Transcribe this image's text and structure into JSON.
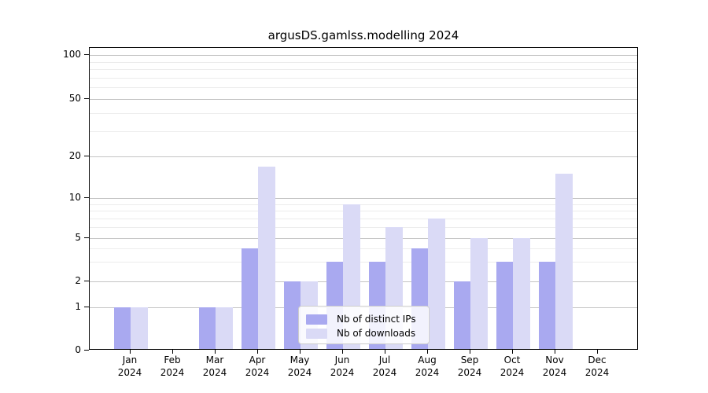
{
  "title": "argusDS.gamlss.modelling 2024",
  "chart_data": {
    "type": "bar",
    "categories": [
      "Jan",
      "Feb",
      "Mar",
      "Apr",
      "May",
      "Jun",
      "Jul",
      "Aug",
      "Sep",
      "Oct",
      "Nov",
      "Dec"
    ],
    "category_year": "2024",
    "series": [
      {
        "name": "Nb of distinct IPs",
        "color": "#a9a9f0",
        "values": [
          1,
          0,
          1,
          4,
          2,
          3,
          3,
          4,
          2,
          3,
          3,
          0
        ]
      },
      {
        "name": "Nb of downloads",
        "color": "#dadaf6",
        "values": [
          1,
          0,
          1,
          17,
          2,
          9,
          6,
          7,
          5,
          5,
          15,
          0
        ]
      }
    ],
    "y_axis": {
      "scale": "symlog",
      "major_ticks": [
        0,
        1,
        2,
        5,
        10,
        20,
        50,
        100
      ],
      "minor_ticks": [
        3,
        4,
        6,
        7,
        8,
        9,
        30,
        40,
        60,
        70,
        80,
        90
      ],
      "ylim": [
        0,
        112
      ]
    },
    "grid": "horizontal-only",
    "legend_position": "lower-center"
  },
  "colors": {
    "bar_distinct_ips": "#a9a9f0",
    "bar_downloads": "#dadaf6",
    "major_grid": "#c4c4c4",
    "minor_grid": "#ececec",
    "axis_spine": "#000000",
    "legend_border": "#cccccc",
    "legend_background": "rgba(255,255,255,0.85)"
  }
}
